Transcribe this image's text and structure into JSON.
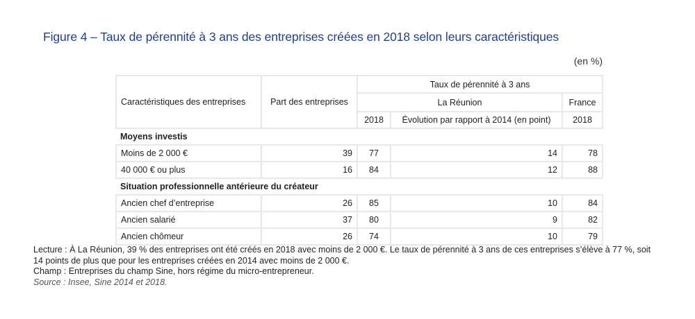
{
  "title": "Figure 4 – Taux de pérennité à 3 ans des entreprises créées en 2018 selon leurs caractéristiques",
  "unit": "(en %)",
  "headers": {
    "characteristics": "Caractéristiques des entreprises",
    "share": "Part des entreprises",
    "survival": "Taux de pérennité à 3 ans",
    "reunion": "La Réunion",
    "france": "France",
    "reunion_2018": "2018",
    "evolution": "Évolution par rapport à 2014 (en point)",
    "france_2018": "2018"
  },
  "sections": [
    {
      "label": "Moyens investis",
      "rows": [
        {
          "label": "Moins de 2 000 €",
          "share": "39",
          "r2018": "77",
          "evo": "14",
          "f2018": "78"
        },
        {
          "label": "40 000 € ou plus",
          "share": "16",
          "r2018": "84",
          "evo": "12",
          "f2018": "88"
        }
      ]
    },
    {
      "label": "Situation professionnelle antérieure du créateur",
      "rows": [
        {
          "label": "Ancien chef d’entreprise",
          "share": "26",
          "r2018": "85",
          "evo": "10",
          "f2018": "84"
        },
        {
          "label": "Ancien salarié",
          "share": "37",
          "r2018": "80",
          "evo": "9",
          "f2018": "82"
        },
        {
          "label": "Ancien chômeur",
          "share": "26",
          "r2018": "74",
          "evo": "10",
          "f2018": "79"
        }
      ]
    }
  ],
  "notes": {
    "lecture": "Lecture : À La Réunion, 39 % des entreprises ont été créés en 2018 avec moins de 2 000 €. Le taux de pérennité à 3 ans de ces entreprises s’élève à 77 %, soit 14 points de plus que pour les entreprises créées en 2014 avec moins de 2 000 €.",
    "champ": "Champ : Entreprises du champ Sine, hors régime du micro-entrepreneur.",
    "source": "Source : Insee, Sine 2014 et 2018."
  }
}
